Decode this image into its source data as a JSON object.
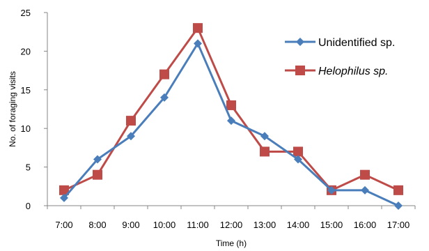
{
  "chart_data": {
    "type": "line",
    "title": "",
    "xlabel": "Time (h)",
    "ylabel": "No. of foraging visits",
    "categories": [
      "7:00",
      "8:00",
      "9:00",
      "10:00",
      "11:00",
      "12:00",
      "13:00",
      "14:00",
      "15:00",
      "16:00",
      "17:00"
    ],
    "ylim": [
      0,
      25
    ],
    "yticks": [
      "0",
      "5",
      "10",
      "15",
      "20",
      "25"
    ],
    "grid": false,
    "legend_position": "top-right",
    "series": [
      {
        "name": "Unidentified sp.",
        "italic": false,
        "color": "#4a7ebb",
        "marker": "diamond",
        "values": [
          1,
          6,
          9,
          14,
          21,
          11,
          9,
          6,
          2,
          2,
          0
        ]
      },
      {
        "name": "Helophilus sp.",
        "italic": true,
        "color": "#be4b48",
        "marker": "square",
        "values": [
          2,
          4,
          11,
          17,
          23,
          13,
          7,
          7,
          2,
          4,
          2
        ]
      }
    ]
  }
}
